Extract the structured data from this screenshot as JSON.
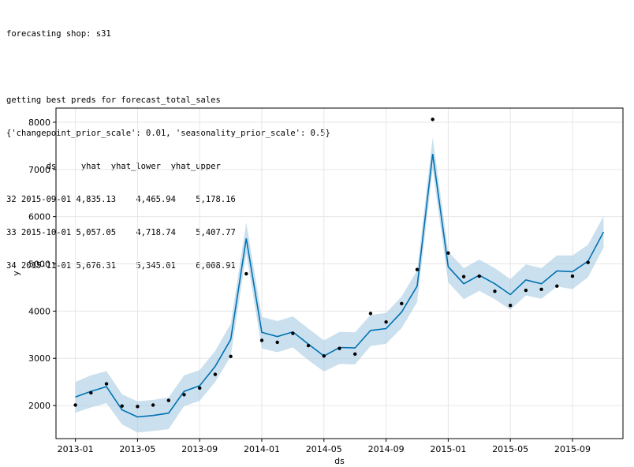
{
  "console": {
    "line1": "forecasting shop: s31",
    "line2": "getting best preds for forecast_total_sales",
    "line3": "{'changepoint_prior_scale': 0.01, 'seasonality_prior_scale': 0.5}",
    "table_header": "        ds     yhat  yhat_lower  yhat_upper",
    "table_rows": [
      "32 2015-09-01 4,835.13    4,465.94    5,178.16",
      "33 2015-10-01 5,057.05    4,718.74    5,407.77",
      "34 2015-11-01 5,676.31    5,345.01    6,008.91"
    ]
  },
  "chart_data": {
    "type": "line",
    "xlabel": "ds",
    "ylabel": "y",
    "x_ticks": [
      "2013-01",
      "2013-05",
      "2013-09",
      "2014-01",
      "2014-05",
      "2014-09",
      "2015-01",
      "2015-05",
      "2015-09"
    ],
    "y_ticks": [
      2000,
      3000,
      4000,
      5000,
      6000,
      7000,
      8000
    ],
    "ylim": [
      1300,
      8300
    ],
    "x_range_months": [
      -1.25,
      35.25
    ],
    "grid": true,
    "colors": {
      "line": "#0072B2",
      "band": "#a9cbe3",
      "points": "#000000",
      "grid": "#e6e6e6"
    },
    "months": [
      "2013-01",
      "2013-02",
      "2013-03",
      "2013-04",
      "2013-05",
      "2013-06",
      "2013-07",
      "2013-08",
      "2013-09",
      "2013-10",
      "2013-11",
      "2013-12",
      "2014-01",
      "2014-02",
      "2014-03",
      "2014-04",
      "2014-05",
      "2014-06",
      "2014-07",
      "2014-08",
      "2014-09",
      "2014-10",
      "2014-11",
      "2014-12",
      "2015-01",
      "2015-02",
      "2015-03",
      "2015-04",
      "2015-05",
      "2015-06",
      "2015-07",
      "2015-08",
      "2015-09",
      "2015-10",
      "2015-11"
    ],
    "yhat": [
      2180,
      2300,
      2400,
      1910,
      1760,
      1790,
      1840,
      2300,
      2420,
      2830,
      3400,
      5540,
      3550,
      3460,
      3560,
      3300,
      3050,
      3230,
      3220,
      3590,
      3630,
      3980,
      4530,
      7330,
      4940,
      4580,
      4760,
      4580,
      4350,
      4660,
      4580,
      4850,
      4835.13,
      5057.05,
      5676.31
    ],
    "yhat_lower": [
      1850,
      1960,
      2050,
      1600,
      1430,
      1460,
      1500,
      1990,
      2100,
      2500,
      3040,
      5220,
      3210,
      3130,
      3230,
      2960,
      2720,
      2880,
      2870,
      3260,
      3310,
      3640,
      4190,
      7000,
      4610,
      4250,
      4430,
      4250,
      4030,
      4330,
      4260,
      4520,
      4465.94,
      4718.74,
      5345.01
    ],
    "yhat_upper": [
      2500,
      2640,
      2730,
      2240,
      2090,
      2120,
      2170,
      2640,
      2750,
      3160,
      3730,
      5880,
      3880,
      3790,
      3890,
      3630,
      3380,
      3560,
      3550,
      3920,
      3960,
      4310,
      4860,
      7680,
      5260,
      4910,
      5090,
      4910,
      4680,
      4990,
      4910,
      5180,
      5178.16,
      5407.77,
      6008.91
    ],
    "actual_months": [
      "2013-01",
      "2013-02",
      "2013-03",
      "2013-04",
      "2013-05",
      "2013-06",
      "2013-07",
      "2013-08",
      "2013-09",
      "2013-10",
      "2013-11",
      "2013-12",
      "2014-01",
      "2014-02",
      "2014-03",
      "2014-04",
      "2014-05",
      "2014-06",
      "2014-07",
      "2014-08",
      "2014-09",
      "2014-10",
      "2014-11",
      "2014-12",
      "2015-01",
      "2015-02",
      "2015-03",
      "2015-04",
      "2015-05",
      "2015-06",
      "2015-07",
      "2015-08",
      "2015-09",
      "2015-10"
    ],
    "actual_y": [
      2010,
      2270,
      2460,
      1990,
      1980,
      2010,
      2110,
      2230,
      2370,
      2660,
      3040,
      4790,
      3380,
      3340,
      3530,
      3270,
      3050,
      3210,
      3090,
      3950,
      3770,
      4160,
      4880,
      8060,
      5230,
      4730,
      4740,
      4420,
      4120,
      4440,
      4460,
      4530,
      4740,
      5030
    ]
  }
}
